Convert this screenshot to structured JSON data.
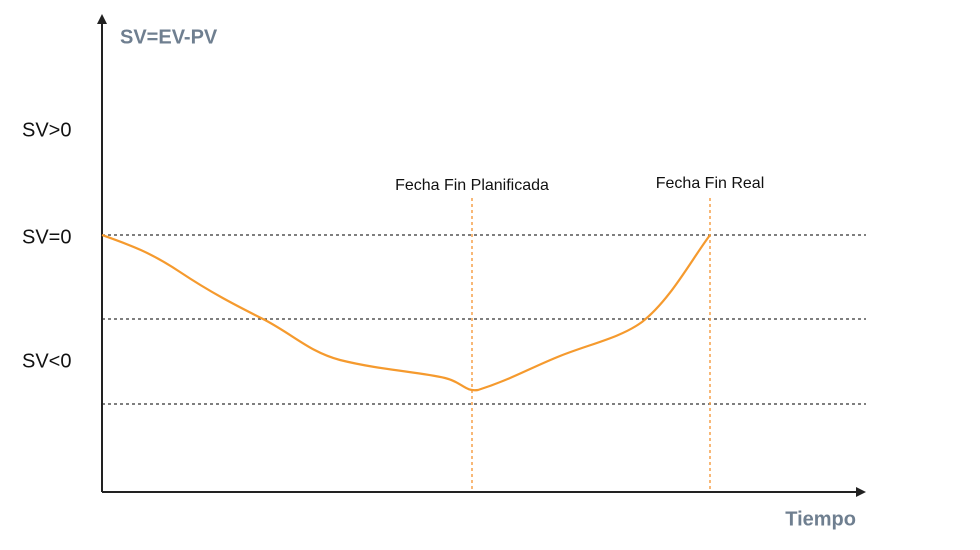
{
  "title": "SV=EV-PV",
  "x_axis_label": "Tiempo",
  "y_labels": [
    "SV>0",
    "SV=0",
    "SV<0"
  ],
  "markers": [
    "Fecha Fin Planificada",
    "Fecha Fin Real"
  ]
}
